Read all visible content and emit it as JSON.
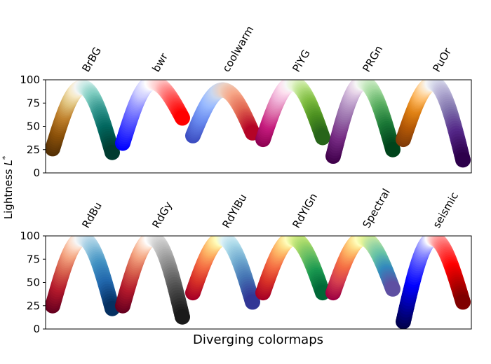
{
  "chart_data": [
    {
      "type": "scatter",
      "title": "",
      "ylabel": "Lightness $L^*$",
      "xlabel": "",
      "ylim": [
        0,
        100
      ],
      "yticks": [
        0,
        25,
        50,
        75,
        100
      ],
      "grid": false,
      "series": [
        {
          "name": "BrBG",
          "start": 26,
          "peak": 92,
          "end": 22,
          "colors": [
            "#543005",
            "#8c510a",
            "#bf812d",
            "#dfc27d",
            "#f6e8c3",
            "#f5f5f5",
            "#c7eae5",
            "#80cdc1",
            "#35978f",
            "#01665e",
            "#003c30"
          ]
        },
        {
          "name": "bwr",
          "start": 32,
          "peak": 97,
          "end": 59,
          "colors": [
            "#0000ff",
            "#6666ff",
            "#ccccff",
            "#ffffff",
            "#ffcccc",
            "#ff6666",
            "#ff0000"
          ]
        },
        {
          "name": "coolwarm",
          "start": 40,
          "peak": 89,
          "end": 43,
          "colors": [
            "#3b4cc0",
            "#6788ee",
            "#9abbff",
            "#c9d7f0",
            "#edd1c2",
            "#f7a889",
            "#e26952",
            "#b40426"
          ]
        },
        {
          "name": "PiYG",
          "start": 36,
          "peak": 96,
          "end": 38,
          "colors": [
            "#8e0152",
            "#c51b7d",
            "#de77ae",
            "#f1b6da",
            "#fde0ef",
            "#f7f7f7",
            "#e6f5d0",
            "#b8e186",
            "#7fbc41",
            "#4d9221",
            "#276419"
          ]
        },
        {
          "name": "PRGn",
          "start": 18,
          "peak": 97,
          "end": 25,
          "colors": [
            "#40004b",
            "#762a83",
            "#9970ab",
            "#c2a5cf",
            "#e7d4e8",
            "#f7f7f7",
            "#d9f0d3",
            "#a6dba0",
            "#5aae61",
            "#1b7837",
            "#00441b"
          ]
        },
        {
          "name": "PuOr",
          "start": 36,
          "peak": 96,
          "end": 14,
          "colors": [
            "#7f3b08",
            "#b35806",
            "#e08214",
            "#fdb863",
            "#fee0b6",
            "#f7f7f7",
            "#d8daeb",
            "#b2abd2",
            "#8073ac",
            "#542788",
            "#2d004b"
          ]
        }
      ]
    },
    {
      "type": "scatter",
      "title": "",
      "ylabel": "",
      "xlabel": "Diverging colormaps",
      "ylim": [
        0,
        100
      ],
      "yticks": [
        0,
        25,
        50,
        75,
        100
      ],
      "grid": false,
      "series": [
        {
          "name": "RdBu",
          "start": 25,
          "peak": 97,
          "end": 22,
          "colors": [
            "#67001f",
            "#b2182b",
            "#d6604d",
            "#f4a582",
            "#fddbc7",
            "#f7f7f7",
            "#d1e5f0",
            "#92c5de",
            "#4393c3",
            "#2166ac",
            "#053061"
          ]
        },
        {
          "name": "RdGy",
          "start": 25,
          "peak": 97,
          "end": 13,
          "colors": [
            "#67001f",
            "#b2182b",
            "#d6604d",
            "#f4a582",
            "#fddbc7",
            "#ffffff",
            "#e0e0e0",
            "#bababa",
            "#878787",
            "#4d4d4d",
            "#1a1a1a"
          ]
        },
        {
          "name": "RdYlBu",
          "start": 39,
          "peak": 97,
          "end": 29,
          "colors": [
            "#a50026",
            "#d73027",
            "#f46d43",
            "#fdae61",
            "#fee090",
            "#ffffbf",
            "#e0f3f8",
            "#abd9e9",
            "#74add1",
            "#4575b4",
            "#313695"
          ]
        },
        {
          "name": "RdYlGn",
          "start": 39,
          "peak": 97,
          "end": 39,
          "colors": [
            "#a50026",
            "#d73027",
            "#f46d43",
            "#fdae61",
            "#fee08b",
            "#ffffbf",
            "#d9ef8b",
            "#a6d96a",
            "#66bd63",
            "#1a9850",
            "#006837"
          ]
        },
        {
          "name": "Spectral",
          "start": 39,
          "peak": 97,
          "end": 43,
          "colors": [
            "#9e0142",
            "#d53e4f",
            "#f46d43",
            "#fdae61",
            "#fee08b",
            "#ffffbf",
            "#e6f598",
            "#abdda4",
            "#66c2a5",
            "#3288bd",
            "#5e4fa2"
          ]
        },
        {
          "name": "seismic",
          "start": 8,
          "peak": 97,
          "end": 29,
          "colors": [
            "#00004c",
            "#0000ff",
            "#8080ff",
            "#ffffff",
            "#ff8080",
            "#ff0000",
            "#800000"
          ]
        }
      ]
    }
  ]
}
